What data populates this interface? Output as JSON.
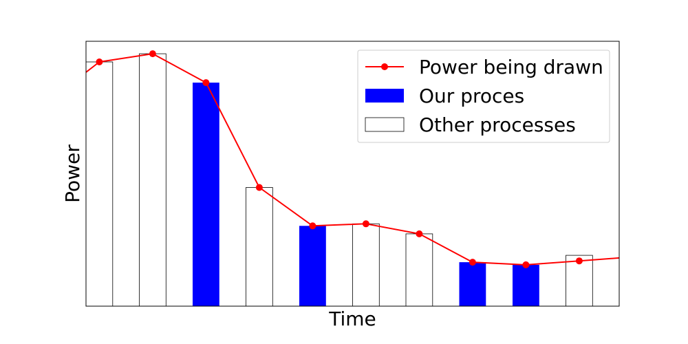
{
  "chart_data": {
    "type": "bar",
    "title": "",
    "xlabel": "Time",
    "ylabel": "Power",
    "x_ticks_shown": false,
    "y_ticks_shown": false,
    "grid": false,
    "ylim": [
      0,
      100
    ],
    "legend_position": "top-right",
    "bars": {
      "x": [
        1,
        2,
        3,
        4,
        5,
        6,
        7,
        8,
        9,
        10
      ],
      "values": [
        92.2,
        95.3,
        84.4,
        44.8,
        30.3,
        31.1,
        27.3,
        16.6,
        15.6,
        19.2
      ],
      "series": [
        "Other processes",
        "Other processes",
        "Our proces",
        "Other processes",
        "Our proces",
        "Other processes",
        "Other processes",
        "Our proces",
        "Our proces",
        "Other processes"
      ]
    },
    "line": {
      "name": "Power being drawn",
      "x": [
        1,
        2,
        3,
        4,
        5,
        6,
        7,
        8,
        9,
        10
      ],
      "values": [
        92.2,
        95.3,
        84.4,
        44.8,
        30.3,
        31.1,
        27.3,
        16.6,
        15.6,
        17.1
      ],
      "extends_beyond_axes": true,
      "start_value": 88.3,
      "end_value": 18.2
    },
    "legend": [
      {
        "label": "Power being drawn",
        "kind": "line-marker",
        "color": "#ff0000"
      },
      {
        "label": "Our proces",
        "kind": "bar",
        "color": "#0000ff"
      },
      {
        "label": "Other processes",
        "kind": "bar",
        "color": "#ffffff"
      }
    ]
  }
}
